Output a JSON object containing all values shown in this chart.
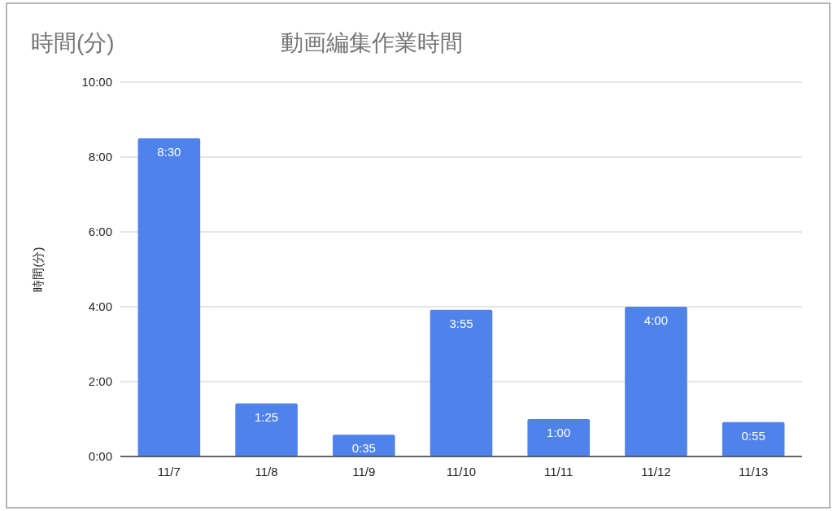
{
  "chart_data": {
    "type": "bar",
    "title": "動画編集作業時間",
    "ylabel": "時間(分)",
    "annotations": [
      "時間(分)"
    ],
    "categories": [
      "11/7",
      "11/8",
      "11/9",
      "11/10",
      "11/11",
      "11/12",
      "11/13"
    ],
    "values": [
      8.5,
      1.4167,
      0.5833,
      3.9167,
      1,
      4,
      0.9167
    ],
    "value_labels": [
      "8:30",
      "1:25",
      "0:35",
      "3:55",
      "1:00",
      "4:00",
      "0:55"
    ],
    "color": "#4f82eb",
    "ylim": [
      0,
      10
    ],
    "yticks": [
      {
        "value": 0,
        "label": "0:00"
      },
      {
        "value": 2,
        "label": "2:00"
      },
      {
        "value": 4,
        "label": "4:00"
      },
      {
        "value": 6,
        "label": "6:00"
      },
      {
        "value": 8,
        "label": "8:00"
      },
      {
        "value": 10,
        "label": "10:00"
      }
    ],
    "grid": "y"
  }
}
